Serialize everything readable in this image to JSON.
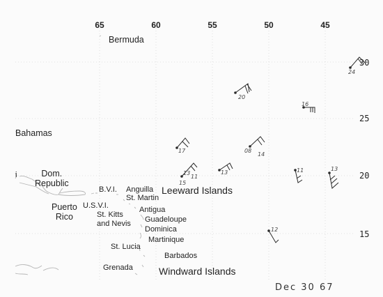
{
  "map": {
    "longitude_labels": [
      "65",
      "60",
      "55",
      "50",
      "45"
    ],
    "latitude_labels": [
      "30",
      "25",
      "20",
      "15"
    ],
    "place_labels": [
      {
        "key": "bermuda",
        "text": "Bermuda"
      },
      {
        "key": "bahamas",
        "text": "Bahamas"
      },
      {
        "key": "dom_rep",
        "text": "Dom.\nRepublic"
      },
      {
        "key": "puerto_rico",
        "text": "Puerto\nRico"
      },
      {
        "key": "bvi",
        "text": "B.V.I."
      },
      {
        "key": "usvi",
        "text": "U.S.V.I."
      },
      {
        "key": "anguilla",
        "text": "Anguilla"
      },
      {
        "key": "st_martin",
        "text": "St. Martin"
      },
      {
        "key": "antigua",
        "text": "Antigua"
      },
      {
        "key": "st_kitts",
        "text": "St. Kitts\nand Nevis"
      },
      {
        "key": "guadeloupe",
        "text": "Guadeloupe"
      },
      {
        "key": "dominica",
        "text": "Dominica"
      },
      {
        "key": "martinique",
        "text": "Martinique"
      },
      {
        "key": "st_lucia",
        "text": "St. Lucia"
      },
      {
        "key": "barbados",
        "text": "Barbados"
      },
      {
        "key": "grenada",
        "text": "Grenada"
      },
      {
        "key": "leeward",
        "text": "Leeward Islands"
      },
      {
        "key": "windward",
        "text": "Windward Islands"
      },
      {
        "key": "i_edge",
        "text": "i"
      }
    ],
    "observation_labels": [
      "24",
      "20",
      "16",
      "17",
      "08",
      "14",
      "13",
      "11",
      "15",
      "13",
      "11",
      "13",
      "12"
    ],
    "annotation": "Dec 30 67"
  }
}
